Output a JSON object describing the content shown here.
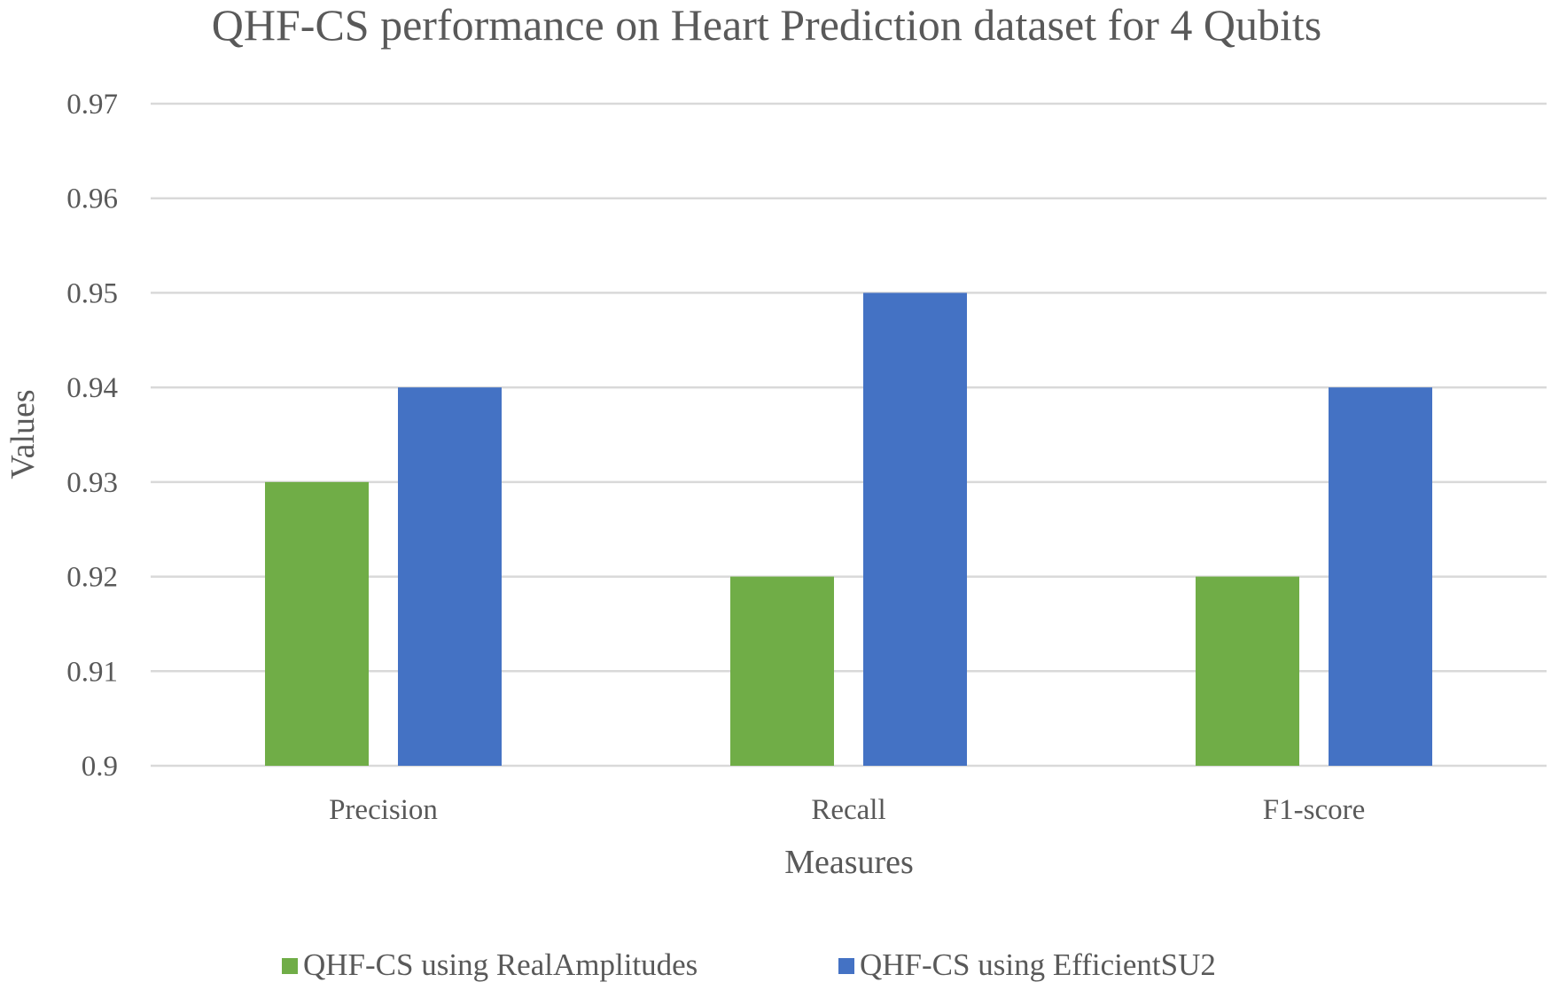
{
  "chart_data": {
    "type": "bar",
    "title": "QHF-CS performance on Heart Prediction dataset for 4 Qubits",
    "xlabel": "Measures",
    "ylabel": "Values",
    "categories": [
      "Precision",
      "Recall",
      "F1-score"
    ],
    "series": [
      {
        "name": "QHF-CS using RealAmplitudes",
        "values": [
          0.93,
          0.92,
          0.92
        ],
        "color": "#70ad47"
      },
      {
        "name": "QHF-CS using EfficientSU2",
        "values": [
          0.94,
          0.95,
          0.94
        ],
        "color": "#4472c4"
      }
    ],
    "ylim": [
      0.9,
      0.97
    ],
    "yticks": [
      "0.9",
      "0.91",
      "0.92",
      "0.93",
      "0.94",
      "0.95",
      "0.96",
      "0.97"
    ],
    "grid": true,
    "gridline_color": "#d9d9d9",
    "text_color": "#595959",
    "legend_position": "bottom"
  }
}
